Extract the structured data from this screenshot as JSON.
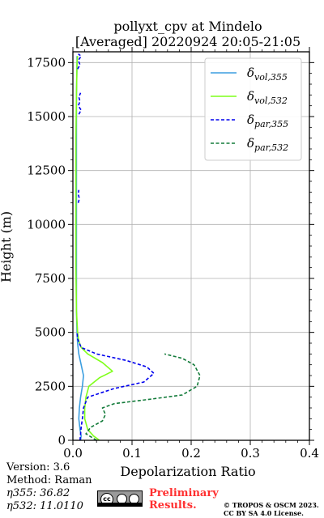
{
  "chart_data": {
    "type": "line",
    "title": "pollyxt_cpv at Mindelo",
    "subtitle": "[Averaged] 20220924 20:05-21:05",
    "xlabel": "Depolarization Ratio",
    "ylabel": "Height (m)",
    "xlim": [
      0,
      0.4
    ],
    "ylim": [
      0,
      18000
    ],
    "xticks": [
      "0.0",
      "0.1",
      "0.2",
      "0.3",
      "0.4"
    ],
    "yticks": [
      "0",
      "2500",
      "5000",
      "7500",
      "10000",
      "12500",
      "15000",
      "17500"
    ],
    "grid": true,
    "legend_position": "top-right",
    "series": [
      {
        "name": "δvol,355",
        "legend_base": "δ",
        "legend_sub": "vol,355",
        "color": "#3b9ee0",
        "style": "solid",
        "points": [
          [
            0.013,
            0
          ],
          [
            0.014,
            200
          ],
          [
            0.012,
            500
          ],
          [
            0.01,
            1000
          ],
          [
            0.011,
            1500
          ],
          [
            0.013,
            2000
          ],
          [
            0.016,
            2500
          ],
          [
            0.018,
            3000
          ],
          [
            0.014,
            3500
          ],
          [
            0.01,
            4000
          ],
          [
            0.008,
            4500
          ],
          [
            0.007,
            5000
          ],
          [
            0.006,
            6000
          ],
          [
            0.006,
            8000
          ],
          [
            0.006,
            10000
          ],
          [
            0.006,
            12000
          ],
          [
            0.006,
            14000
          ],
          [
            0.006,
            16000
          ],
          [
            0.007,
            17500
          ],
          [
            0.007,
            17800
          ]
        ]
      },
      {
        "name": "δvol,532",
        "legend_base": "δ",
        "legend_sub": "vol,532",
        "color": "#7fff1a",
        "style": "solid",
        "points": [
          [
            0.045,
            0
          ],
          [
            0.035,
            200
          ],
          [
            0.025,
            500
          ],
          [
            0.02,
            1000
          ],
          [
            0.02,
            1500
          ],
          [
            0.022,
            2000
          ],
          [
            0.027,
            2500
          ],
          [
            0.045,
            2900
          ],
          [
            0.067,
            3200
          ],
          [
            0.05,
            3600
          ],
          [
            0.025,
            4000
          ],
          [
            0.014,
            4300
          ],
          [
            0.01,
            4600
          ],
          [
            0.008,
            5000
          ],
          [
            0.006,
            6000
          ],
          [
            0.005,
            8000
          ],
          [
            0.005,
            10000
          ],
          [
            0.005,
            12000
          ],
          [
            0.005,
            14000
          ],
          [
            0.006,
            16000
          ],
          [
            0.007,
            17500
          ],
          [
            0.008,
            17800
          ]
        ]
      },
      {
        "name": "δpar,355",
        "legend_base": "δ",
        "legend_sub": "par,355",
        "color": "#0000ee",
        "style": "dashed",
        "points": [
          [
            0.012,
            0
          ],
          [
            0.013,
            300
          ],
          [
            0.014,
            600
          ],
          [
            0.016,
            1000
          ],
          [
            0.018,
            1500
          ],
          [
            0.025,
            2000
          ],
          [
            0.07,
            2400
          ],
          [
            0.12,
            2700
          ],
          [
            0.137,
            3100
          ],
          [
            0.125,
            3400
          ],
          [
            0.09,
            3700
          ],
          [
            0.04,
            4000
          ],
          [
            0.014,
            4300
          ],
          [
            0.008,
            4700
          ],
          [
            0.007,
            5000
          ]
        ]
      },
      {
        "name": "δpar,532",
        "legend_base": "δ",
        "legend_sub": "par,532",
        "color": "#137b3a",
        "style": "dashed",
        "points": [
          [
            0.04,
            0
          ],
          [
            0.022,
            300
          ],
          [
            0.03,
            600
          ],
          [
            0.05,
            900
          ],
          [
            0.055,
            1200
          ],
          [
            0.05,
            1500
          ],
          [
            0.07,
            1700
          ],
          [
            0.13,
            1900
          ],
          [
            0.185,
            2100
          ],
          [
            0.21,
            2500
          ],
          [
            0.215,
            3000
          ],
          [
            0.205,
            3500
          ],
          [
            0.185,
            3800
          ],
          [
            0.155,
            4000
          ]
        ]
      },
      {
        "name": "δpar,355 upper",
        "color": "#0000ee",
        "style": "dashed",
        "points": [
          [
            0.01,
            15100
          ],
          [
            0.014,
            15300
          ],
          [
            0.009,
            15500
          ],
          [
            0.012,
            15700
          ],
          [
            0.01,
            15900
          ],
          [
            0.013,
            16100
          ]
        ]
      },
      {
        "name": "δpar,355 top",
        "color": "#0000ee",
        "style": "dashed",
        "points": [
          [
            0.008,
            17200
          ],
          [
            0.012,
            17400
          ],
          [
            0.009,
            17600
          ],
          [
            0.014,
            17800
          ],
          [
            0.009,
            17900
          ]
        ]
      },
      {
        "name": "δpar,355 mid",
        "color": "#0000ee",
        "style": "dashed",
        "points": [
          [
            0.009,
            11000
          ],
          [
            0.011,
            11200
          ],
          [
            0.009,
            11400
          ],
          [
            0.01,
            11600
          ]
        ]
      }
    ]
  },
  "footer": {
    "version": "Version: 3.6",
    "method": "Method: Raman",
    "eta355": "η355:  36.82",
    "eta532": "η532: 11.0110",
    "preliminary_line1": "Preliminary",
    "preliminary_line2": "Results.",
    "copyright_line1": "© TROPOS & OSCM 2023.",
    "copyright_line2": "CC BY SA 4.0 License.",
    "cc_badge": "cc"
  }
}
